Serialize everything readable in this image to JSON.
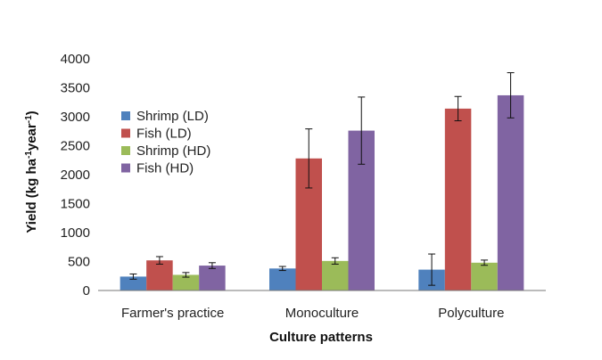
{
  "chart_data": {
    "type": "bar",
    "title": "",
    "xlabel": "Culture patterns",
    "ylabel": {
      "base": "Yield (kg ha",
      "sup1": "-1",
      "mid": "year",
      "sup2": "-1",
      "end": ")"
    },
    "ylim": [
      0,
      4000
    ],
    "yticks": [
      "0",
      "500",
      "1000",
      "1500",
      "2000",
      "2500",
      "3000",
      "3500",
      "4000"
    ],
    "ytick_values": [
      0,
      500,
      1000,
      1500,
      2000,
      2500,
      3000,
      3500,
      4000
    ],
    "categories": [
      "Farmer's practice",
      "Monoculture",
      "Polyculture"
    ],
    "grid": false,
    "legend_position": "upper-left",
    "series": [
      {
        "name": "Shrimp (LD)",
        "color": "#4f81bd",
        "values": [
          240,
          380,
          360
        ],
        "errors": [
          45,
          35,
          270
        ]
      },
      {
        "name": "Fish (LD)",
        "color": "#c0504d",
        "values": [
          520,
          2280,
          3140
        ],
        "errors": [
          65,
          510,
          210
        ]
      },
      {
        "name": "Shrimp (HD)",
        "color": "#9bbb59",
        "values": [
          270,
          510,
          480
        ],
        "errors": [
          40,
          55,
          45
        ]
      },
      {
        "name": "Fish (HD)",
        "color": "#8064a2",
        "values": [
          430,
          2760,
          3370
        ],
        "errors": [
          50,
          580,
          390
        ]
      }
    ]
  }
}
